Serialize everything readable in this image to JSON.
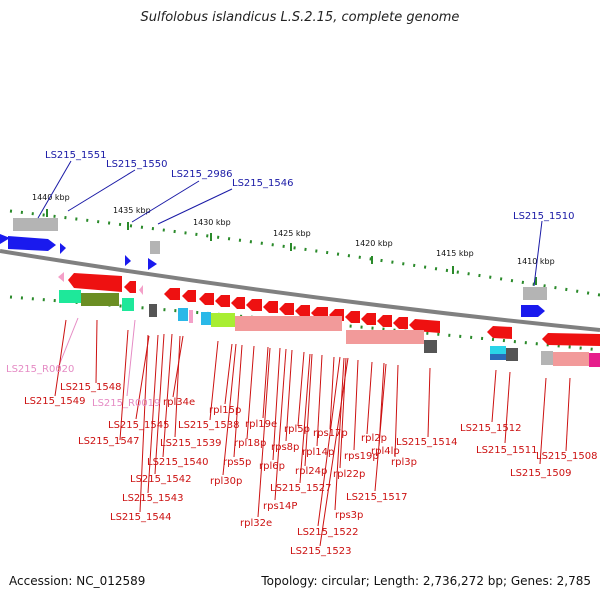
{
  "title": "Sulfolobus islandicus L.S.2.15, complete genome",
  "accession": "Accession: NC_012589",
  "topology": "Topology: circular; Length: 2,736,272 bp; Genes: 2,785",
  "scale_ticks": [
    "1440 kbp",
    "1435 kbp",
    "1430 kbp",
    "1425 kbp",
    "1420 kbp",
    "1415 kbp",
    "1410 kbp"
  ],
  "forward_labels": [
    "LS215_1551",
    "LS215_1550",
    "LS215_2986",
    "LS215_1546",
    "LS215_1510"
  ],
  "reverse_labels": [
    "LS215_R0020",
    "LS215_1548",
    "LS215_1549",
    "LS215_R0019",
    "LS215_1545",
    "LS215_1547",
    "rpl34e",
    "LS215_1538",
    "LS215_1539",
    "LS215_1540",
    "LS215_1542",
    "LS215_1543",
    "LS215_1544",
    "rpl15p",
    "rpl19e",
    "rpl18p",
    "rps5p",
    "rpl30p",
    "rps8p",
    "rpl6p",
    "rps14P",
    "rpl32e",
    "rpl5p",
    "rpl14p",
    "rpl24p",
    "LS215_1527",
    "rps17p",
    "rpl22p",
    "rps19p",
    "rps3p",
    "LS215_1522",
    "LS215_1523",
    "rpl2p",
    "rpl4lp",
    "rpl3p",
    "LS215_1517",
    "LS215_1514",
    "LS215_1512",
    "LS215_1511",
    "LS215_1509",
    "LS215_1508"
  ],
  "colors": {
    "forward_label": "#1a1aa6",
    "reverse_label": "#cc1111",
    "rna_label": "#e58bc4",
    "forward_gene": "#1a1aee",
    "reverse_gene": "#ee1111",
    "backbone": "#808080"
  }
}
